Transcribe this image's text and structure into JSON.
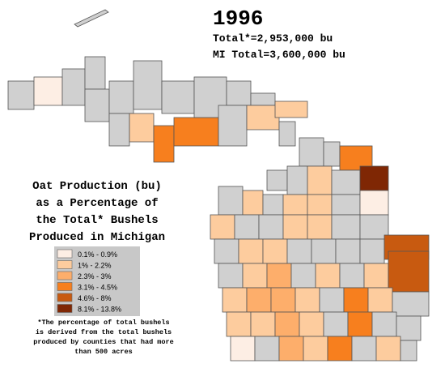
{
  "header": {
    "title": "1996",
    "total": "Total*=2,953,000 bu",
    "mi_total": "MI Total=3,600,000 bu"
  },
  "caption": [
    "Oat Production (bu)",
    "as a Percentage of",
    "the Total* Bushels",
    "Produced in Michigan"
  ],
  "legend": {
    "items": [
      {
        "label": "0.1% - 0.9%",
        "color": "#fdeee4"
      },
      {
        "label": "1% - 2.2%",
        "color": "#fdcc9e"
      },
      {
        "label": "2.3% - 3%",
        "color": "#fdae6b"
      },
      {
        "label": "3.1% - 4.5%",
        "color": "#f77f1e"
      },
      {
        "label": "4.6% - 8%",
        "color": "#c85a10"
      },
      {
        "label": "8.1% - 13.8%",
        "color": "#7f2704"
      }
    ]
  },
  "footnote": [
    "*The percentage of total bushels",
    "is derived from the total bushels",
    "produced by counties that had more",
    "than 500 acres"
  ]
}
